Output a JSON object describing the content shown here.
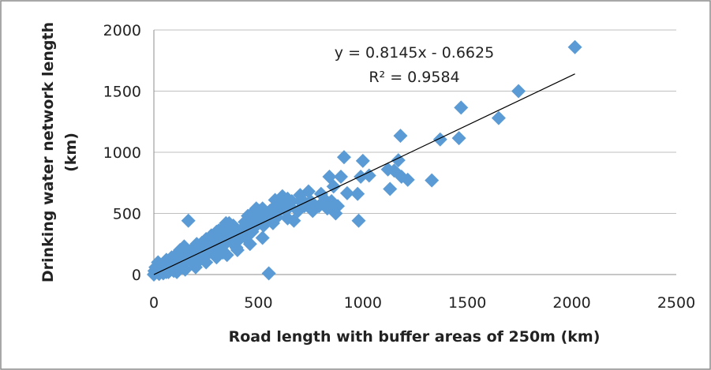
{
  "chart_data": {
    "type": "scatter",
    "xlabel": "Road length with buffer areas of 250m (km)",
    "ylabel_line1": "Drinking water network length",
    "ylabel_line2": "(km)",
    "xlim": [
      0,
      2500
    ],
    "ylim": [
      0,
      2000
    ],
    "xticks": [
      "0",
      "500",
      "1000",
      "1500",
      "2000",
      "2500"
    ],
    "yticks": [
      "0",
      "500",
      "1000",
      "1500",
      "2000"
    ],
    "grid": "horizontal",
    "marker_color": "#5b9bd5",
    "trendline": {
      "equation": "y = 0.8145x - 0.6625",
      "r_squared": "R² = 0.9584",
      "slope": 0.8145,
      "intercept": -0.6625,
      "x_range": [
        0,
        2015
      ]
    },
    "points": [
      [
        2015,
        1860
      ],
      [
        1745,
        1500
      ],
      [
        1650,
        1280
      ],
      [
        1470,
        1365
      ],
      [
        1460,
        1115
      ],
      [
        1370,
        1105
      ],
      [
        1330,
        770
      ],
      [
        1215,
        775
      ],
      [
        1185,
        800
      ],
      [
        1180,
        1135
      ],
      [
        1170,
        935
      ],
      [
        1150,
        850
      ],
      [
        1130,
        700
      ],
      [
        1120,
        860
      ],
      [
        1030,
        810
      ],
      [
        1000,
        930
      ],
      [
        990,
        800
      ],
      [
        980,
        440
      ],
      [
        975,
        660
      ],
      [
        925,
        665
      ],
      [
        910,
        960
      ],
      [
        895,
        800
      ],
      [
        880,
        560
      ],
      [
        870,
        500
      ],
      [
        860,
        720
      ],
      [
        850,
        600
      ],
      [
        840,
        800
      ],
      [
        830,
        540
      ],
      [
        820,
        610
      ],
      [
        800,
        660
      ],
      [
        790,
        560
      ],
      [
        760,
        520
      ],
      [
        750,
        600
      ],
      [
        740,
        680
      ],
      [
        720,
        560
      ],
      [
        700,
        600
      ],
      [
        690,
        520
      ],
      [
        670,
        440
      ],
      [
        660,
        600
      ],
      [
        650,
        560
      ],
      [
        640,
        460
      ],
      [
        630,
        520
      ],
      [
        625,
        560
      ],
      [
        615,
        640
      ],
      [
        605,
        600
      ],
      [
        600,
        540
      ],
      [
        590,
        470
      ],
      [
        580,
        560
      ],
      [
        570,
        420
      ],
      [
        560,
        500
      ],
      [
        550,
        10
      ],
      [
        545,
        480
      ],
      [
        535,
        440
      ],
      [
        525,
        400
      ],
      [
        515,
        470
      ],
      [
        505,
        520
      ],
      [
        500,
        430
      ],
      [
        490,
        400
      ],
      [
        480,
        460
      ],
      [
        470,
        350
      ],
      [
        460,
        410
      ],
      [
        450,
        360
      ],
      [
        440,
        300
      ],
      [
        435,
        430
      ],
      [
        425,
        380
      ],
      [
        420,
        340
      ],
      [
        410,
        290
      ],
      [
        400,
        360
      ],
      [
        395,
        220
      ],
      [
        385,
        310
      ],
      [
        380,
        400
      ],
      [
        370,
        270
      ],
      [
        360,
        340
      ],
      [
        350,
        300
      ],
      [
        345,
        420
      ],
      [
        335,
        240
      ],
      [
        330,
        180
      ],
      [
        320,
        300
      ],
      [
        310,
        250
      ],
      [
        300,
        350
      ],
      [
        290,
        210
      ],
      [
        280,
        280
      ],
      [
        275,
        320
      ],
      [
        265,
        180
      ],
      [
        260,
        240
      ],
      [
        250,
        290
      ],
      [
        245,
        150
      ],
      [
        235,
        220
      ],
      [
        230,
        260
      ],
      [
        220,
        120
      ],
      [
        215,
        200
      ],
      [
        205,
        250
      ],
      [
        200,
        160
      ],
      [
        190,
        90
      ],
      [
        185,
        210
      ],
      [
        175,
        140
      ],
      [
        170,
        180
      ],
      [
        165,
        440
      ],
      [
        160,
        110
      ],
      [
        150,
        170
      ],
      [
        145,
        230
      ],
      [
        140,
        80
      ],
      [
        130,
        140
      ],
      [
        125,
        200
      ],
      [
        120,
        100
      ],
      [
        110,
        60
      ],
      [
        105,
        160
      ],
      [
        100,
        120
      ],
      [
        95,
        30
      ],
      [
        90,
        80
      ],
      [
        85,
        140
      ],
      [
        80,
        50
      ],
      [
        75,
        100
      ],
      [
        70,
        20
      ],
      [
        65,
        60
      ],
      [
        60,
        120
      ],
      [
        55,
        40
      ],
      [
        50,
        80
      ],
      [
        45,
        10
      ],
      [
        40,
        50
      ],
      [
        35,
        30
      ],
      [
        30,
        70
      ],
      [
        25,
        5
      ],
      [
        20,
        100
      ],
      [
        15,
        40
      ],
      [
        12,
        20
      ],
      [
        8,
        60
      ],
      [
        5,
        10
      ],
      [
        3,
        30
      ],
      [
        0,
        0
      ],
      [
        620,
        600
      ],
      [
        580,
        610
      ],
      [
        640,
        620
      ],
      [
        710,
        610
      ],
      [
        700,
        650
      ],
      [
        450,
        480
      ],
      [
        470,
        500
      ],
      [
        520,
        540
      ],
      [
        555,
        520
      ],
      [
        490,
        540
      ],
      [
        360,
        420
      ],
      [
        330,
        380
      ],
      [
        310,
        360
      ],
      [
        290,
        330
      ],
      [
        270,
        300
      ],
      [
        240,
        270
      ],
      [
        210,
        230
      ],
      [
        180,
        200
      ],
      [
        155,
        180
      ],
      [
        135,
        150
      ],
      [
        60,
        20
      ],
      [
        110,
        20
      ],
      [
        150,
        40
      ],
      [
        200,
        60
      ],
      [
        250,
        100
      ],
      [
        300,
        140
      ],
      [
        350,
        160
      ],
      [
        400,
        200
      ],
      [
        460,
        250
      ],
      [
        520,
        300
      ]
    ]
  }
}
